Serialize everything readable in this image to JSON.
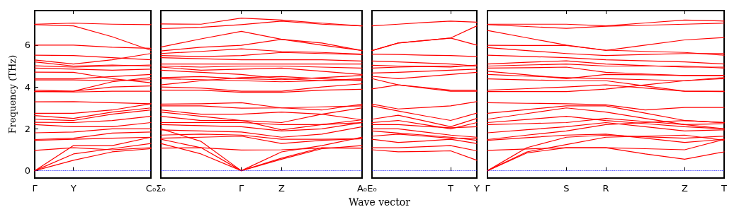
{
  "chart_data": [
    {
      "type": "line",
      "ylabel": "Frequency (THz)",
      "marker": "none",
      "line_style": "solid",
      "categories": [
        "Γ",
        "Y",
        null,
        "C₀"
      ],
      "ylim": [
        -0.35,
        7.65
      ],
      "yticks": [
        0,
        2,
        4,
        6
      ],
      "ref_lines": [
        {
          "axis": "y",
          "value": 0,
          "color": "#0000ff",
          "line_style": "dotted"
        }
      ],
      "series": [
        {
          "color": "#ff0000",
          "values": [
            7.0,
            7.05,
            7.0,
            6.98
          ]
        },
        {
          "color": "#ff0000",
          "values": [
            6.98,
            6.92,
            6.4,
            5.75
          ]
        },
        {
          "color": "#ff0000",
          "values": [
            6.0,
            6.0,
            5.9,
            5.85
          ]
        },
        {
          "color": "#ff0000",
          "values": [
            5.52,
            5.5,
            5.4,
            5.3
          ]
        },
        {
          "color": "#ff0000",
          "values": [
            5.29,
            5.1,
            5.3,
            5.6
          ]
        },
        {
          "color": "#ff0000",
          "values": [
            5.2,
            5.0,
            5.05,
            5.0
          ]
        },
        {
          "color": "#ff0000",
          "values": [
            5.01,
            4.95,
            5.0,
            5.05
          ]
        },
        {
          "color": "#ff0000",
          "values": [
            4.9,
            4.85,
            4.8,
            4.85
          ]
        },
        {
          "color": "#ff0000",
          "values": [
            4.71,
            4.7,
            4.4,
            4.2
          ]
        },
        {
          "color": "#ff0000",
          "values": [
            4.39,
            4.39,
            4.5,
            4.6
          ]
        },
        {
          "color": "#ff0000",
          "values": [
            4.34,
            4.34,
            4.3,
            4.35
          ]
        },
        {
          "color": "#ff0000",
          "values": [
            3.85,
            3.8,
            4.25,
            4.45
          ]
        },
        {
          "color": "#ff0000",
          "values": [
            3.78,
            3.8,
            4.0,
            4.05
          ]
        },
        {
          "color": "#ff0000",
          "values": [
            3.78,
            3.76,
            3.8,
            3.8
          ]
        },
        {
          "color": "#ff0000",
          "values": [
            3.29,
            3.3,
            3.25,
            3.2
          ]
        },
        {
          "color": "#ff0000",
          "values": [
            2.74,
            2.74,
            2.9,
            3.2
          ]
        },
        {
          "color": "#ff0000",
          "values": [
            2.63,
            2.5,
            2.8,
            3.0
          ]
        },
        {
          "color": "#ff0000",
          "values": [
            2.46,
            2.4,
            2.7,
            2.9
          ]
        },
        {
          "color": "#ff0000",
          "values": [
            2.31,
            2.3,
            2.4,
            2.6
          ]
        },
        {
          "color": "#ff0000",
          "values": [
            2.2,
            2.1,
            2.1,
            2.3
          ]
        },
        {
          "color": "#ff0000",
          "values": [
            1.81,
            1.85,
            2.0,
            2.0
          ]
        },
        {
          "color": "#ff0000",
          "values": [
            1.49,
            1.55,
            1.8,
            1.85
          ]
        },
        {
          "color": "#ff0000",
          "values": [
            1.45,
            1.5,
            1.55,
            1.6
          ]
        },
        {
          "color": "#ff0000",
          "values": [
            0.97,
            1.1,
            1.0,
            1.1
          ]
        },
        {
          "color": "#ff0000",
          "values": [
            0,
            1.2,
            1.2,
            1.6
          ]
        },
        {
          "color": "#ff0000",
          "values": [
            0,
            0.8,
            1.05,
            1.3
          ]
        },
        {
          "color": "#ff0000",
          "values": [
            0,
            0.5,
            0.9,
            1.05
          ]
        }
      ],
      "tick_labels": "both"
    },
    {
      "type": "line",
      "marker": "none",
      "line_style": "solid",
      "categories": [
        "Σ₀",
        null,
        "Γ",
        "Z",
        null,
        "A₀"
      ],
      "ylim": [
        -0.35,
        7.65
      ],
      "tick_labels": "x",
      "ref_lines": [
        {
          "axis": "y",
          "value": 0,
          "color": "#0000ff",
          "line_style": "dotted"
        }
      ],
      "series": [
        {
          "color": "#ff0000",
          "values": [
            7.01,
            7.0,
            7.29,
            7.2,
            7.05,
            6.92
          ]
        },
        {
          "color": "#ff0000",
          "values": [
            6.79,
            6.85,
            6.98,
            7.15,
            7.0,
            6.92
          ]
        },
        {
          "color": "#ff0000",
          "values": [
            5.91,
            6.3,
            6.66,
            6.28,
            6.0,
            5.74
          ]
        },
        {
          "color": "#ff0000",
          "values": [
            5.72,
            5.9,
            5.99,
            6.28,
            6.1,
            5.74
          ]
        },
        {
          "color": "#ff0000",
          "values": [
            5.6,
            5.7,
            5.82,
            5.7,
            5.65,
            5.57
          ]
        },
        {
          "color": "#ff0000",
          "values": [
            5.5,
            5.45,
            5.5,
            5.65,
            5.6,
            5.55
          ]
        },
        {
          "color": "#ff0000",
          "values": [
            5.4,
            5.35,
            5.3,
            5.3,
            5.3,
            5.24
          ]
        },
        {
          "color": "#ff0000",
          "values": [
            5.1,
            5.1,
            5.1,
            5.1,
            5.1,
            5.1
          ]
        },
        {
          "color": "#ff0000",
          "values": [
            5.0,
            4.95,
            5.0,
            5.0,
            4.95,
            4.9
          ]
        },
        {
          "color": "#ff0000",
          "values": [
            4.95,
            4.8,
            4.85,
            4.9,
            4.75,
            4.6
          ]
        },
        {
          "color": "#ff0000",
          "values": [
            4.8,
            4.7,
            4.6,
            4.4,
            4.3,
            4.4
          ]
        },
        {
          "color": "#ff0000",
          "values": [
            4.45,
            4.5,
            4.4,
            4.35,
            4.45,
            4.55
          ]
        },
        {
          "color": "#ff0000",
          "values": [
            4.4,
            4.35,
            4.3,
            4.25,
            4.3,
            4.35
          ]
        },
        {
          "color": "#ff0000",
          "values": [
            4.1,
            4.3,
            4.45,
            4.5,
            4.4,
            4.3
          ]
        },
        {
          "color": "#ff0000",
          "values": [
            4.0,
            3.95,
            3.8,
            3.8,
            4.0,
            4.15
          ]
        },
        {
          "color": "#ff0000",
          "values": [
            3.85,
            3.85,
            3.75,
            3.75,
            3.85,
            3.89
          ]
        },
        {
          "color": "#ff0000",
          "values": [
            3.18,
            3.2,
            3.25,
            3.0,
            2.9,
            3.18
          ]
        },
        {
          "color": "#ff0000",
          "values": [
            3.1,
            3.1,
            2.99,
            3.0,
            3.05,
            3.1
          ]
        },
        {
          "color": "#ff0000",
          "values": [
            2.9,
            2.7,
            2.7,
            2.8,
            2.7,
            3.0
          ]
        },
        {
          "color": "#ff0000",
          "values": [
            2.8,
            2.6,
            2.4,
            2.3,
            2.7,
            2.43
          ]
        },
        {
          "color": "#ff0000",
          "values": [
            2.6,
            2.4,
            2.4,
            1.95,
            2.2,
            2.43
          ]
        },
        {
          "color": "#ff0000",
          "values": [
            2.3,
            2.3,
            2.3,
            2.2,
            2.2,
            2.3
          ]
        },
        {
          "color": "#ff0000",
          "values": [
            2.2,
            2.15,
            2.1,
            1.9,
            2.0,
            2.3
          ]
        },
        {
          "color": "#ff0000",
          "values": [
            1.95,
            1.9,
            1.85,
            1.6,
            1.75,
            2.1
          ]
        },
        {
          "color": "#ff0000",
          "values": [
            1.7,
            1.75,
            1.7,
            1.5,
            1.5,
            1.53
          ]
        },
        {
          "color": "#ff0000",
          "values": [
            1.55,
            1.6,
            1.65,
            1.3,
            1.45,
            1.53
          ]
        },
        {
          "color": "#ff0000",
          "values": [
            1.08,
            1.1,
            0.99,
            1.0,
            1.08,
            1.08
          ]
        },
        {
          "color": "#ff0000",
          "values": [
            2.0,
            1.4,
            0,
            0.9,
            1.2,
            1.6
          ]
        },
        {
          "color": "#ff0000",
          "values": [
            1.5,
            1.1,
            0,
            0.55,
            1.05,
            1.2
          ]
        },
        {
          "color": "#ff0000",
          "values": [
            1.3,
            0.8,
            0,
            0.6,
            1.1,
            1.08
          ]
        }
      ]
    },
    {
      "type": "line",
      "marker": "none",
      "line_style": "solid",
      "categories": [
        "E₀",
        null,
        null,
        "T",
        "Y"
      ],
      "xlabel": "Wave vector",
      "ylim": [
        -0.35,
        7.65
      ],
      "tick_labels": "x",
      "ref_lines": [
        {
          "axis": "y",
          "value": 0,
          "color": "#0000ff",
          "line_style": "dotted"
        }
      ],
      "series": [
        {
          "color": "#ff0000",
          "values": [
            6.92,
            7.0,
            7.08,
            7.15,
            7.1
          ]
        },
        {
          "color": "#ff0000",
          "values": [
            5.74,
            6.1,
            6.22,
            6.34,
            6.92
          ]
        },
        {
          "color": "#ff0000",
          "values": [
            5.74,
            6.1,
            6.22,
            6.34,
            6.0
          ]
        },
        {
          "color": "#ff0000",
          "values": [
            5.57,
            5.55,
            5.52,
            5.5,
            5.45
          ]
        },
        {
          "color": "#ff0000",
          "values": [
            5.24,
            5.2,
            5.15,
            5.1,
            5.0
          ]
        },
        {
          "color": "#ff0000",
          "values": [
            5.04,
            5.0,
            4.98,
            4.95,
            5.05
          ]
        },
        {
          "color": "#ff0000",
          "values": [
            4.9,
            4.95,
            4.98,
            5.0,
            5.0
          ]
        },
        {
          "color": "#ff0000",
          "values": [
            4.67,
            4.7,
            4.75,
            4.8,
            4.85
          ]
        },
        {
          "color": "#ff0000",
          "values": [
            4.51,
            4.4,
            4.5,
            4.6,
            4.7
          ]
        },
        {
          "color": "#ff0000",
          "values": [
            4.4,
            4.1,
            3.98,
            3.85,
            3.85
          ]
        },
        {
          "color": "#ff0000",
          "values": [
            3.91,
            4.1,
            3.95,
            3.8,
            3.8
          ]
        },
        {
          "color": "#ff0000",
          "values": [
            3.18,
            2.95,
            3.02,
            3.1,
            3.3
          ]
        },
        {
          "color": "#ff0000",
          "values": [
            3.1,
            2.85,
            2.62,
            2.4,
            2.75
          ]
        },
        {
          "color": "#ff0000",
          "values": [
            2.46,
            2.65,
            2.38,
            2.1,
            2.5
          ]
        },
        {
          "color": "#ff0000",
          "values": [
            2.3,
            2.4,
            2.2,
            2.0,
            2.3
          ]
        },
        {
          "color": "#ff0000",
          "values": [
            2.2,
            2.2,
            2.12,
            2.05,
            2.1
          ]
        },
        {
          "color": "#ff0000",
          "values": [
            2.0,
            2.0,
            1.85,
            1.7,
            1.6
          ]
        },
        {
          "color": "#ff0000",
          "values": [
            1.9,
            1.8,
            1.7,
            1.6,
            1.45
          ]
        },
        {
          "color": "#ff0000",
          "values": [
            1.65,
            1.75,
            1.65,
            1.55,
            1.55
          ]
        },
        {
          "color": "#ff0000",
          "values": [
            1.5,
            1.35,
            1.42,
            1.5,
            1.3
          ]
        },
        {
          "color": "#ff0000",
          "values": [
            1.1,
            1.1,
            1.15,
            1.2,
            0.95
          ]
        },
        {
          "color": "#ff0000",
          "values": [
            1.0,
            0.9,
            0.92,
            0.95,
            0.5
          ]
        }
      ]
    },
    {
      "type": "line",
      "marker": "none",
      "line_style": "solid",
      "categories": [
        "Γ",
        null,
        "S",
        "R",
        null,
        "Z",
        "T"
      ],
      "ylim": [
        -0.35,
        7.65
      ],
      "tick_labels": "x",
      "ref_lines": [
        {
          "axis": "y",
          "value": 0,
          "color": "#0000ff",
          "line_style": "dotted"
        }
      ],
      "series": [
        {
          "color": "#ff0000",
          "values": [
            7.0,
            7.0,
            7.0,
            6.92,
            7.06,
            7.2,
            7.15
          ]
        },
        {
          "color": "#ff0000",
          "values": [
            6.98,
            6.89,
            6.8,
            6.9,
            6.95,
            7.0,
            7.05
          ]
        },
        {
          "color": "#ff0000",
          "values": [
            6.7,
            6.35,
            6.0,
            5.75,
            6.0,
            6.25,
            6.36
          ]
        },
        {
          "color": "#ff0000",
          "values": [
            5.99,
            5.98,
            5.98,
            5.76,
            5.7,
            5.65,
            5.52
          ]
        },
        {
          "color": "#ff0000",
          "values": [
            5.88,
            5.74,
            5.6,
            5.5,
            5.55,
            5.6,
            5.6
          ]
        },
        {
          "color": "#ff0000",
          "values": [
            5.52,
            5.46,
            5.4,
            5.3,
            5.25,
            5.2,
            5.1
          ]
        },
        {
          "color": "#ff0000",
          "values": [
            5.1,
            5.18,
            5.25,
            5.1,
            5.02,
            4.95,
            4.95
          ]
        },
        {
          "color": "#ff0000",
          "values": [
            5.0,
            5.05,
            5.1,
            5.0,
            5.0,
            5.0,
            4.9
          ]
        },
        {
          "color": "#ff0000",
          "values": [
            4.9,
            4.92,
            4.95,
            4.7,
            4.62,
            4.55,
            4.55
          ]
        },
        {
          "color": "#ff0000",
          "values": [
            4.75,
            4.58,
            4.4,
            4.6,
            4.58,
            4.55,
            4.55
          ]
        },
        {
          "color": "#ff0000",
          "values": [
            4.6,
            4.52,
            4.45,
            4.4,
            4.35,
            4.3,
            4.4
          ]
        },
        {
          "color": "#ff0000",
          "values": [
            4.39,
            4.34,
            4.3,
            4.3,
            4.05,
            3.8,
            3.8
          ]
        },
        {
          "color": "#ff0000",
          "values": [
            3.85,
            3.92,
            4.0,
            4.1,
            3.95,
            3.8,
            3.78
          ]
        },
        {
          "color": "#ff0000",
          "values": [
            3.78,
            3.78,
            3.78,
            3.9,
            4.1,
            4.3,
            4.45
          ]
        },
        {
          "color": "#ff0000",
          "values": [
            3.25,
            3.22,
            3.2,
            3.15,
            2.9,
            3.02,
            3.02
          ]
        },
        {
          "color": "#ff0000",
          "values": [
            2.74,
            2.92,
            3.1,
            3.1,
            2.75,
            2.4,
            2.3
          ]
        },
        {
          "color": "#ff0000",
          "values": [
            2.46,
            2.73,
            3.0,
            2.8,
            2.5,
            2.2,
            2.25
          ]
        },
        {
          "color": "#ff0000",
          "values": [
            2.3,
            2.45,
            2.6,
            2.4,
            2.25,
            2.1,
            2.0
          ]
        },
        {
          "color": "#ff0000",
          "values": [
            2.2,
            2.25,
            2.3,
            2.5,
            2.35,
            2.2,
            2.0
          ]
        },
        {
          "color": "#ff0000",
          "values": [
            1.81,
            1.96,
            2.1,
            2.3,
            2.1,
            1.9,
            1.95
          ]
        },
        {
          "color": "#ff0000",
          "values": [
            1.49,
            1.7,
            1.9,
            2.2,
            2.3,
            2.4,
            2.3
          ]
        },
        {
          "color": "#ff0000",
          "values": [
            1.45,
            1.58,
            1.7,
            1.75,
            1.55,
            1.35,
            1.5
          ]
        },
        {
          "color": "#ff0000",
          "values": [
            0.97,
            1.04,
            1.1,
            1.1,
            1.05,
            1.0,
            1.5
          ]
        },
        {
          "color": "#ff0000",
          "values": [
            0,
            1.1,
            1.6,
            1.7,
            1.62,
            1.55,
            1.65
          ]
        },
        {
          "color": "#ff0000",
          "values": [
            0,
            0.9,
            1.25,
            1.6,
            1.65,
            1.7,
            1.45
          ]
        },
        {
          "color": "#ff0000",
          "values": [
            0,
            0.85,
            1.1,
            1.1,
            0.8,
            0.55,
            0.9
          ]
        }
      ]
    }
  ]
}
